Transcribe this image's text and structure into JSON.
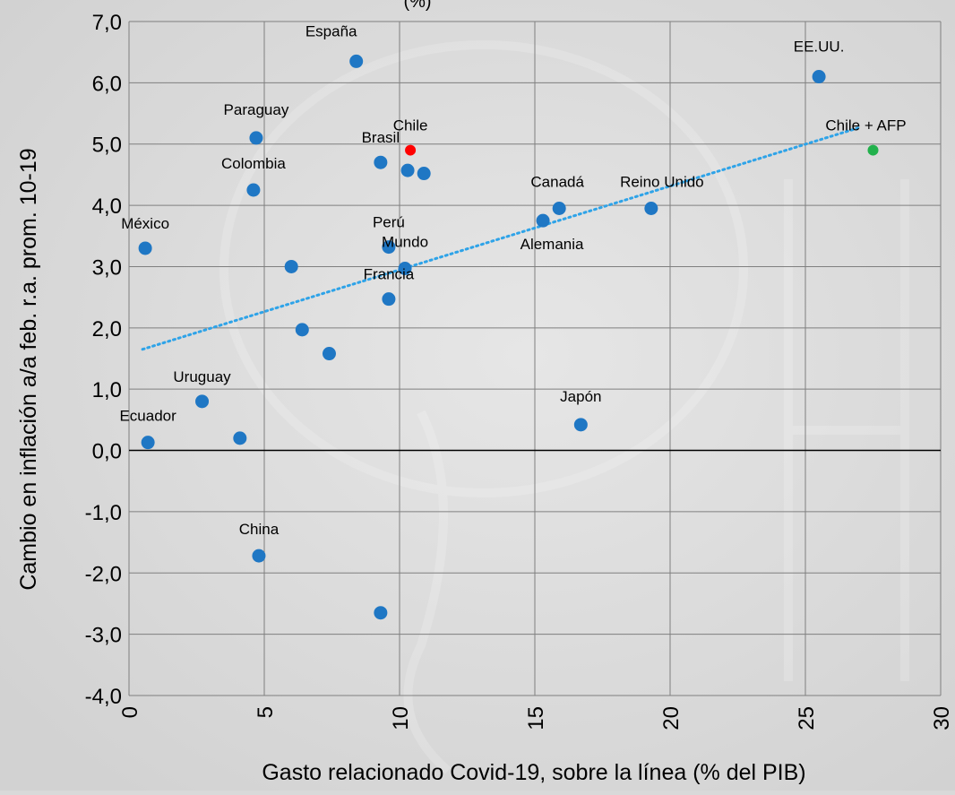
{
  "chart_data": {
    "type": "scatter",
    "title": "(%)",
    "xlabel": "Gasto relacionado Covid-19, sobre la línea (% del PIB)",
    "ylabel": "Cambio en inflación a/a feb. r.a. prom. 10-19",
    "xlim": [
      0,
      30
    ],
    "ylim": [
      -4,
      7
    ],
    "x_ticks": [
      {
        "value": 0,
        "label": "0"
      },
      {
        "value": 5,
        "label": "5"
      },
      {
        "value": 10,
        "label": "10"
      },
      {
        "value": 15,
        "label": "15"
      },
      {
        "value": 20,
        "label": "20"
      },
      {
        "value": 25,
        "label": "25"
      },
      {
        "value": 30,
        "label": "30"
      }
    ],
    "y_ticks": [
      {
        "value": 7,
        "label": "7,0"
      },
      {
        "value": 6,
        "label": "6,0"
      },
      {
        "value": 5,
        "label": "5,0"
      },
      {
        "value": 4,
        "label": "4,0"
      },
      {
        "value": 3,
        "label": "3,0"
      },
      {
        "value": 2,
        "label": "2,0"
      },
      {
        "value": 1,
        "label": "1,0"
      },
      {
        "value": 0,
        "label": "0,0"
      },
      {
        "value": -1,
        "label": "-1,0"
      },
      {
        "value": -2,
        "label": "-2,0"
      },
      {
        "value": -3,
        "label": "-3,0"
      },
      {
        "value": -4,
        "label": "-4,0"
      }
    ],
    "grid": true,
    "colors": {
      "default": "#1f77c4",
      "chile": "#ff0000",
      "chile_afp": "#22b14c",
      "trend": "#2ea3e8"
    },
    "points": [
      {
        "x": 8.4,
        "y": 6.35,
        "label": "España",
        "color": "#1f77c4"
      },
      {
        "x": 25.5,
        "y": 6.1,
        "label": "EE.UU.",
        "color": "#1f77c4"
      },
      {
        "x": 4.7,
        "y": 5.1,
        "label": "Paraguay",
        "color": "#1f77c4"
      },
      {
        "x": 10.4,
        "y": 4.9,
        "label": "Chile",
        "color": "#ff0000"
      },
      {
        "x": 27.5,
        "y": 4.9,
        "label": "Chile + AFP",
        "color": "#22b14c"
      },
      {
        "x": 9.3,
        "y": 4.7,
        "label": "Brasil",
        "color": "#1f77c4"
      },
      {
        "x": 10.3,
        "y": 4.57,
        "label": "",
        "color": "#1f77c4"
      },
      {
        "x": 10.9,
        "y": 4.52,
        "label": "",
        "color": "#1f77c4"
      },
      {
        "x": 4.6,
        "y": 4.25,
        "label": "Colombia",
        "color": "#1f77c4"
      },
      {
        "x": 15.9,
        "y": 3.95,
        "label": "Canadá",
        "color": "#1f77c4"
      },
      {
        "x": 19.3,
        "y": 3.95,
        "label": "Reino Unido",
        "color": "#1f77c4"
      },
      {
        "x": 15.3,
        "y": 3.75,
        "label": "Alemania",
        "color": "#1f77c4"
      },
      {
        "x": 0.6,
        "y": 3.3,
        "label": "México",
        "color": "#1f77c4"
      },
      {
        "x": 9.6,
        "y": 3.32,
        "label": "Perú",
        "color": "#1f77c4"
      },
      {
        "x": 6.0,
        "y": 3.0,
        "label": "",
        "color": "#1f77c4"
      },
      {
        "x": 10.2,
        "y": 2.97,
        "label": "Mundo",
        "color": "#1f77c4"
      },
      {
        "x": 9.6,
        "y": 2.47,
        "label": "Francia",
        "color": "#1f77c4"
      },
      {
        "x": 6.4,
        "y": 1.97,
        "label": "",
        "color": "#1f77c4"
      },
      {
        "x": 7.4,
        "y": 1.58,
        "label": "",
        "color": "#1f77c4"
      },
      {
        "x": 2.7,
        "y": 0.8,
        "label": "Uruguay",
        "color": "#1f77c4"
      },
      {
        "x": 16.7,
        "y": 0.42,
        "label": "Japón",
        "color": "#1f77c4"
      },
      {
        "x": 4.1,
        "y": 0.2,
        "label": "",
        "color": "#1f77c4"
      },
      {
        "x": 0.7,
        "y": 0.13,
        "label": "Ecuador",
        "color": "#1f77c4"
      },
      {
        "x": 4.8,
        "y": -1.72,
        "label": "China",
        "color": "#1f77c4"
      },
      {
        "x": 9.3,
        "y": -2.65,
        "label": "",
        "color": "#1f77c4"
      }
    ],
    "trendline": {
      "x": [
        0.5,
        27.0
      ],
      "y": [
        1.65,
        5.27
      ],
      "style": "dotted"
    }
  }
}
